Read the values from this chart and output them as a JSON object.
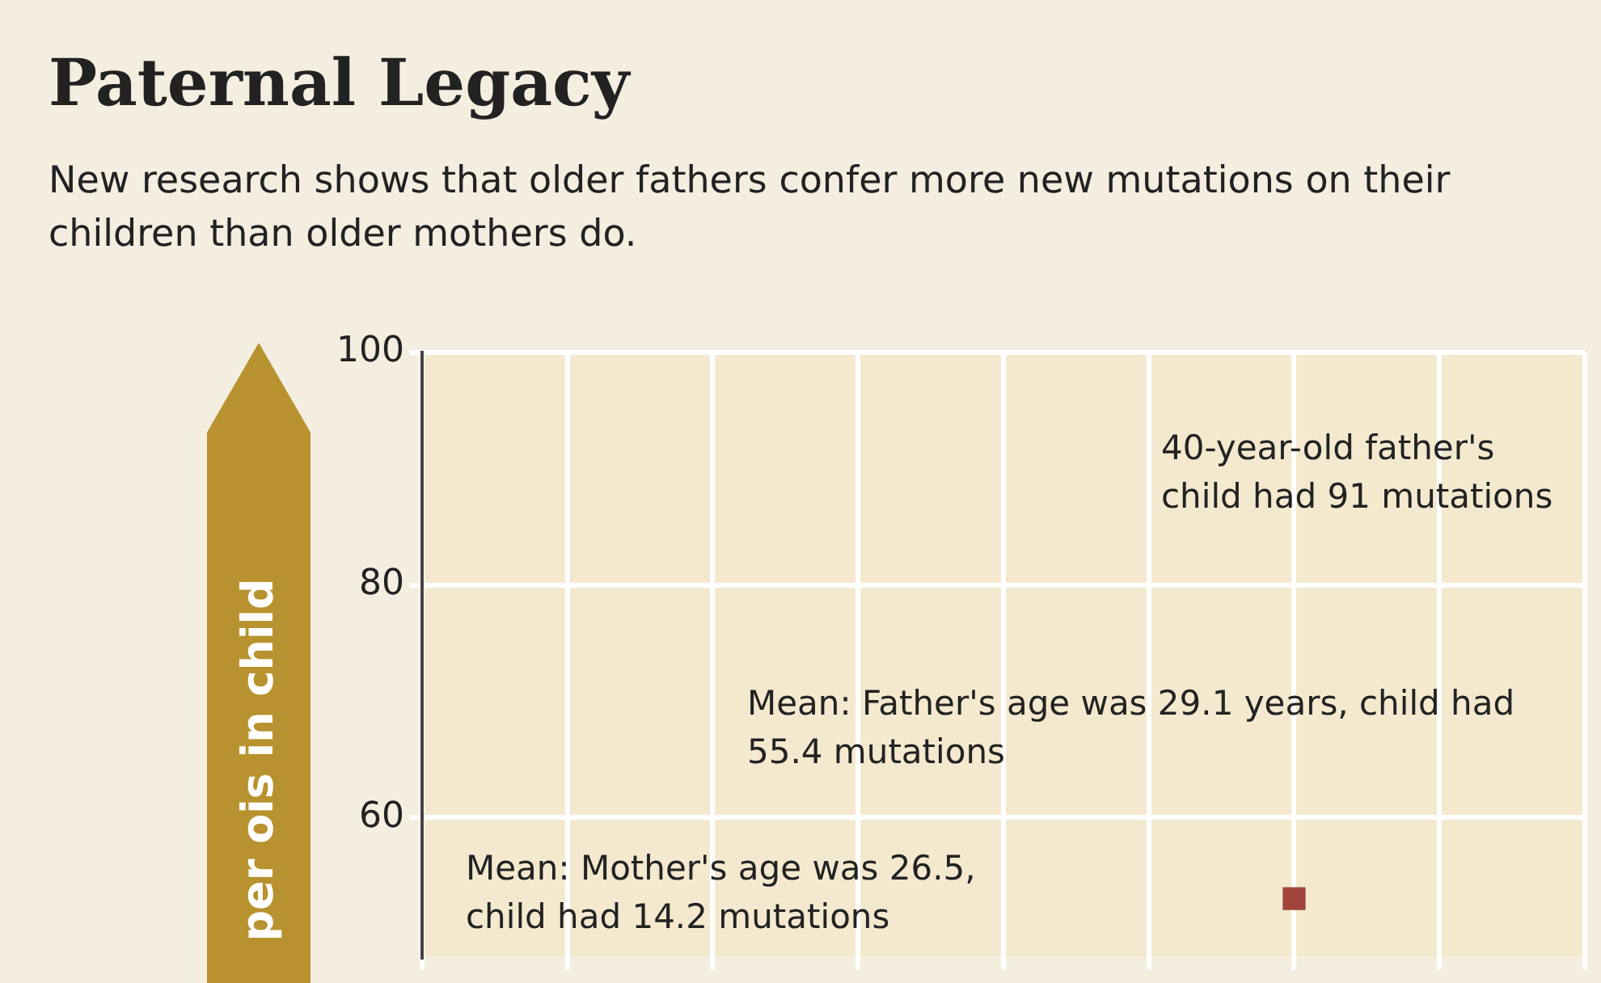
{
  "chart_data": {
    "type": "scatter",
    "title": "Paternal Legacy",
    "subtitle": "New research shows that older fathers confer more new mutations on their children than older mothers do.",
    "ylabel": "per ois in child",
    "categories": [
      null,
      null,
      null,
      null,
      null,
      null,
      null,
      null,
      null
    ],
    "series": [
      {
        "color": "#a0443c",
        "values": [
          null,
          null,
          null,
          null,
          null,
          null,
          53,
          null,
          null
        ]
      }
    ],
    "ylim": [
      48,
      100
    ],
    "yticks": [
      60,
      80,
      100
    ],
    "grid": true,
    "legend": false,
    "marker": "square",
    "tick_labels": "y",
    "annotations": [
      "40-year-old father's child had 91 mutations",
      "Mean: Father's age was 29.1 years, child had 55.4 mutations",
      "Mean: Mother's age was 26.5, child had 14.2 mutations"
    ]
  }
}
